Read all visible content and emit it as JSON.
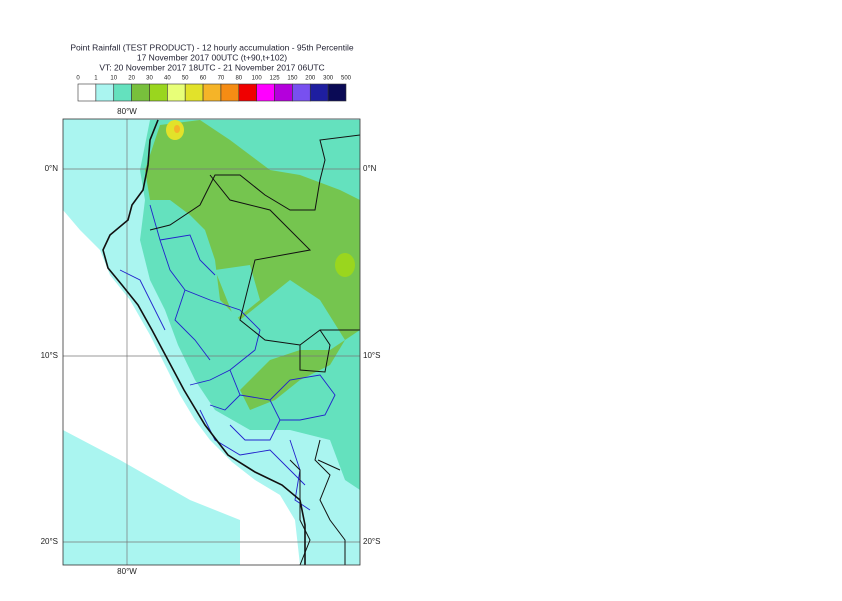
{
  "header": {
    "title": "Point Rainfall (TEST PRODUCT) - 12 hourly accumulation - 95th Percentile",
    "run": "17 November 2017 00UTC (t+90,t+102)",
    "valid": "VT: 20 November 2017 18UTC - 21 November 2017 06UTC"
  },
  "legend": {
    "labels": [
      "0",
      "1",
      "10",
      "20",
      "30",
      "40",
      "50",
      "60",
      "70",
      "80",
      "100",
      "125",
      "150",
      "200",
      "300",
      "500"
    ],
    "colors": [
      "#ffffff",
      "#aaf5f0",
      "#64e1be",
      "#78c03c",
      "#9ad61e",
      "#e8ff78",
      "#e2e22a",
      "#f5b428",
      "#f58c14",
      "#f00000",
      "#ff00ff",
      "#b400dc",
      "#7850f0",
      "#1e1ea0",
      "#0a0a55"
    ]
  },
  "map": {
    "lon_labels": [
      "80°W"
    ],
    "lat_labels": [
      "0°N",
      "10°S",
      "20°S"
    ]
  }
}
